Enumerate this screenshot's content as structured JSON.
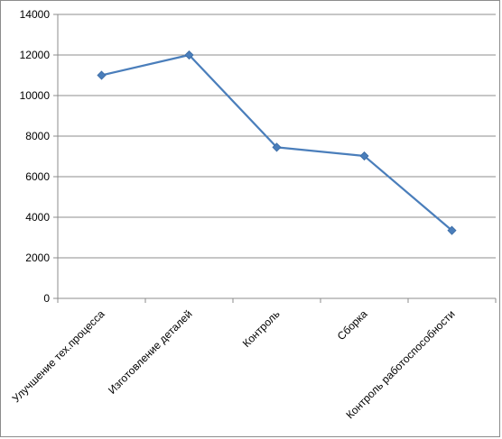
{
  "chart_data": {
    "type": "line",
    "title": "",
    "xlabel": "",
    "ylabel": "",
    "categories": [
      "Улучшение тех.процесса",
      "Изготовление деталей",
      "Контроль",
      "Сборка",
      "Контроль работоспособности"
    ],
    "series": [
      {
        "values": [
          11000,
          12000,
          7450,
          7020,
          3350
        ],
        "color": "#4a7ebb",
        "marker": "diamond"
      }
    ],
    "ylim": [
      0,
      14000
    ],
    "yticks": [
      0,
      2000,
      4000,
      6000,
      8000,
      10000,
      12000,
      14000
    ],
    "grid": true,
    "legend": "none",
    "colors": {
      "gridline": "#8c8c8c",
      "axis": "#8c8c8c",
      "frame": "#8c8c8c"
    }
  }
}
